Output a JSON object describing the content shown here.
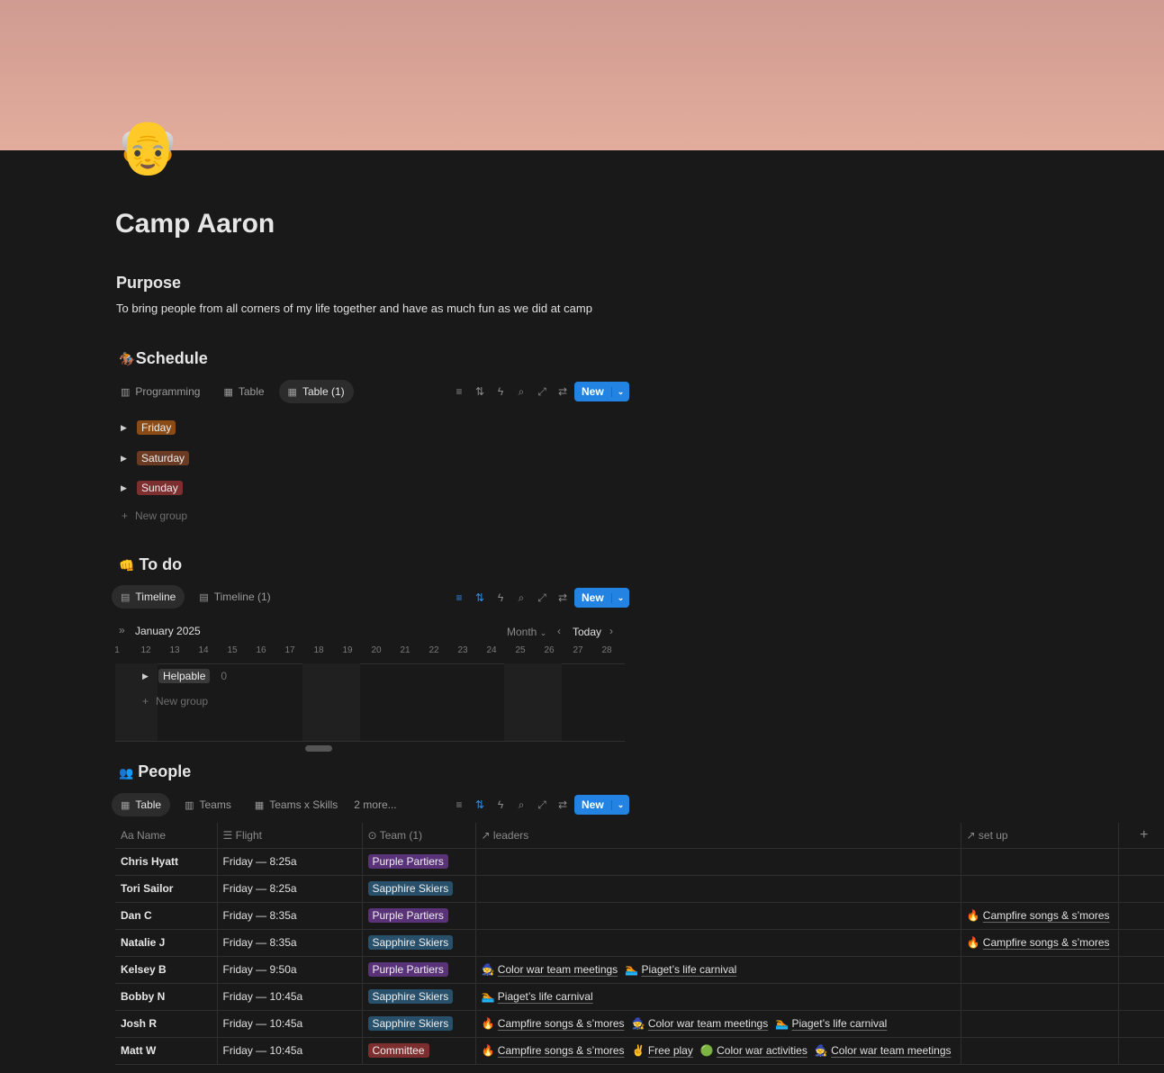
{
  "page": {
    "icon": "👴",
    "title": "Camp Aaron"
  },
  "purpose": {
    "heading": "Purpose",
    "text": "To bring people from all corners of my life together and have as much fun as we did at camp"
  },
  "schedule": {
    "icon": "🏇",
    "heading": "Schedule",
    "tabs": [
      {
        "label": "Programming",
        "icon": "board-icon"
      },
      {
        "label": "Table",
        "icon": "table-icon"
      },
      {
        "label": "Table (1)",
        "icon": "table-icon",
        "active": true
      }
    ],
    "new_label": "New",
    "groups": [
      {
        "label": "Friday",
        "color": "#8a4b16"
      },
      {
        "label": "Saturday",
        "color": "#6b3a22"
      },
      {
        "label": "Sunday",
        "color": "#7d2f2f"
      }
    ],
    "new_group": "New group"
  },
  "todo": {
    "icon": "👊",
    "heading": "To do",
    "tabs": [
      {
        "label": "Timeline",
        "active": true
      },
      {
        "label": "Timeline (1)"
      }
    ],
    "new_label": "New",
    "month": "January 2025",
    "scale": "Month",
    "today": "Today",
    "days": [
      "1",
      "12",
      "13",
      "14",
      "15",
      "16",
      "17",
      "18",
      "19",
      "20",
      "21",
      "22",
      "23",
      "24",
      "25",
      "26",
      "27",
      "28"
    ],
    "group": {
      "label": "Helpable",
      "count": "0"
    },
    "new_group": "New group"
  },
  "people": {
    "icon": "👥",
    "heading": "People",
    "tabs": [
      {
        "label": "Table",
        "active": true
      },
      {
        "label": "Teams"
      },
      {
        "label": "Teams x Skills"
      },
      {
        "label": "2 more..."
      }
    ],
    "new_label": "New",
    "columns": [
      "Name",
      "Flight",
      "Team (1)",
      "leaders",
      "set up"
    ],
    "team_colors": {
      "Purple Partiers": "#5a3278",
      "Sapphire Skiers": "#28506a",
      "Committee": "#7d2f2f"
    },
    "rows": [
      {
        "name": "Chris Hyatt",
        "flight": "Friday — 8:25a",
        "team": "Purple Partiers",
        "leaders": [],
        "setup": []
      },
      {
        "name": "Tori Sailor",
        "flight": "Friday — 8:25a",
        "team": "Sapphire Skiers",
        "leaders": [],
        "setup": []
      },
      {
        "name": "Dan C",
        "flight": "Friday — 8:35a",
        "team": "Purple Partiers",
        "leaders": [],
        "setup": [
          {
            "icon": "🔥",
            "label": "Campfire songs & s’mores"
          }
        ]
      },
      {
        "name": "Natalie J",
        "flight": "Friday — 8:35a",
        "team": "Sapphire Skiers",
        "leaders": [],
        "setup": [
          {
            "icon": "🔥",
            "label": "Campfire songs & s’mores"
          }
        ]
      },
      {
        "name": "Kelsey B",
        "flight": "Friday — 9:50a",
        "team": "Purple Partiers",
        "leaders": [
          {
            "icon": "🧙",
            "label": "Color war team meetings"
          },
          {
            "icon": "🏊",
            "label": "Piaget’s life carnival"
          }
        ],
        "setup": []
      },
      {
        "name": "Bobby N",
        "flight": "Friday — 10:45a",
        "team": "Sapphire Skiers",
        "leaders": [
          {
            "icon": "🏊",
            "label": "Piaget’s life carnival"
          }
        ],
        "setup": []
      },
      {
        "name": "Josh R",
        "flight": "Friday — 10:45a",
        "team": "Sapphire Skiers",
        "leaders": [
          {
            "icon": "🔥",
            "label": "Campfire songs & s’mores"
          },
          {
            "icon": "🧙",
            "label": "Color war team meetings"
          },
          {
            "icon": "🏊",
            "label": "Piaget’s life carnival"
          }
        ],
        "setup": []
      },
      {
        "name": "Matt W",
        "flight": "Friday — 10:45a",
        "team": "Committee",
        "leaders": [
          {
            "icon": "🔥",
            "label": "Campfire songs & s’mores"
          },
          {
            "icon": "✌",
            "label": "Free play"
          },
          {
            "icon": "🟢",
            "label": "Color war activities"
          },
          {
            "icon": "🧙",
            "label": "Color war team meetings"
          }
        ],
        "setup": []
      }
    ]
  }
}
